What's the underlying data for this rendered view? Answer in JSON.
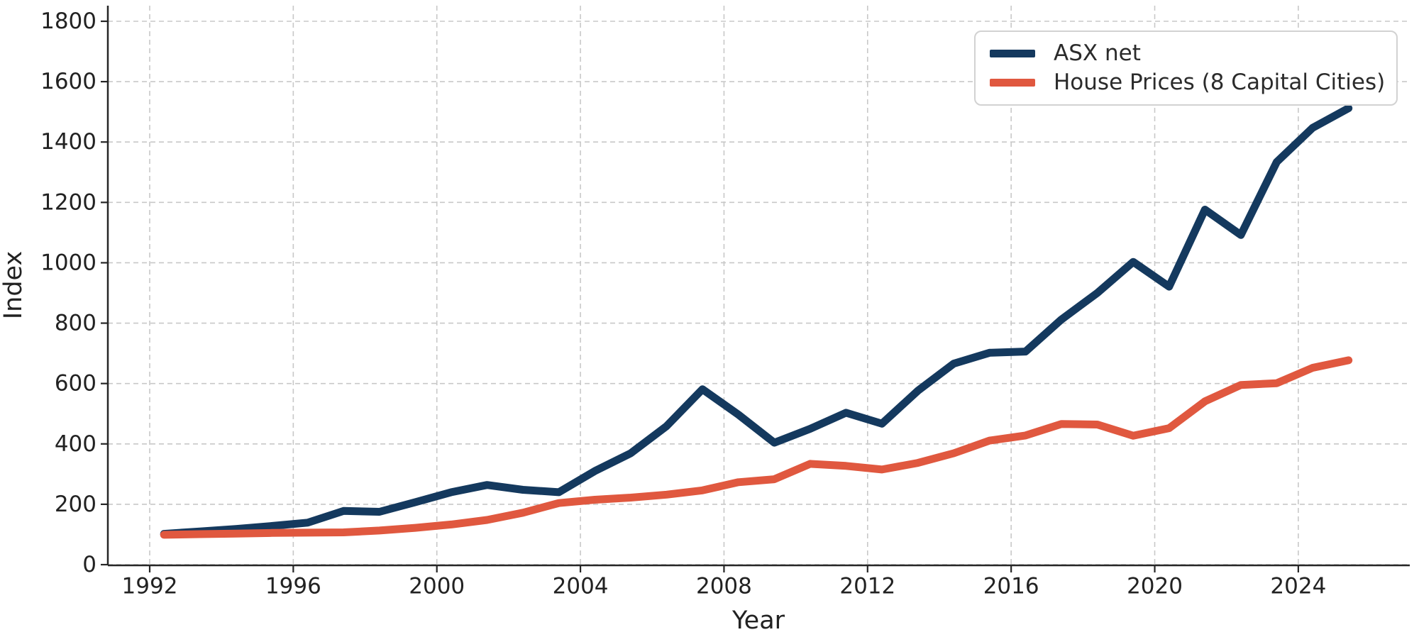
{
  "colors": {
    "asx_line": "#14395e",
    "house_line": "#e0583f",
    "grid": "#c8c8c8",
    "spine": "#262626",
    "text": "#222222",
    "legend_border": "#d2d2d2",
    "background": "#ffffff"
  },
  "chart_data": {
    "type": "line",
    "title": "",
    "xlabel": "Year",
    "ylabel": "Index",
    "grid": true,
    "legend_position": "upper right",
    "x": [
      1992,
      1993,
      1994,
      1995,
      1996,
      1997,
      1998,
      1999,
      2000,
      2001,
      2002,
      2003,
      2004,
      2005,
      2006,
      2007,
      2008,
      2009,
      2010,
      2011,
      2012,
      2013,
      2014,
      2015,
      2016,
      2017,
      2018,
      2019,
      2020,
      2021,
      2022,
      2023,
      2024,
      2025
    ],
    "series": [
      {
        "name": "ASX net",
        "color": "#14395e",
        "values": [
          102,
          110,
          118,
          128,
          139,
          178,
          175,
          207,
          240,
          264,
          248,
          240,
          310,
          369,
          459,
          581,
          497,
          404,
          450,
          503,
          467,
          576,
          666,
          702,
          706,
          812,
          900,
          1003,
          921,
          1176,
          1092,
          1334,
          1447,
          1512
        ]
      },
      {
        "name": "House Prices (8 Capital Cities)",
        "color": "#e0583f",
        "values": [
          99,
          101,
          103,
          105,
          106,
          107,
          113,
          122,
          133,
          148,
          172,
          204,
          215,
          222,
          232,
          246,
          273,
          283,
          334,
          327,
          315,
          337,
          369,
          411,
          428,
          466,
          464,
          427,
          452,
          541,
          595,
          601,
          652,
          677
        ]
      }
    ],
    "xticks": [
      1992,
      1996,
      2000,
      2004,
      2008,
      2012,
      2016,
      2020,
      2024
    ],
    "yticks": [
      0,
      200,
      400,
      600,
      800,
      1000,
      1200,
      1400,
      1600,
      1800
    ],
    "xlim": [
      1990.8,
      2027.1
    ],
    "ylim": [
      0,
      1860
    ]
  }
}
